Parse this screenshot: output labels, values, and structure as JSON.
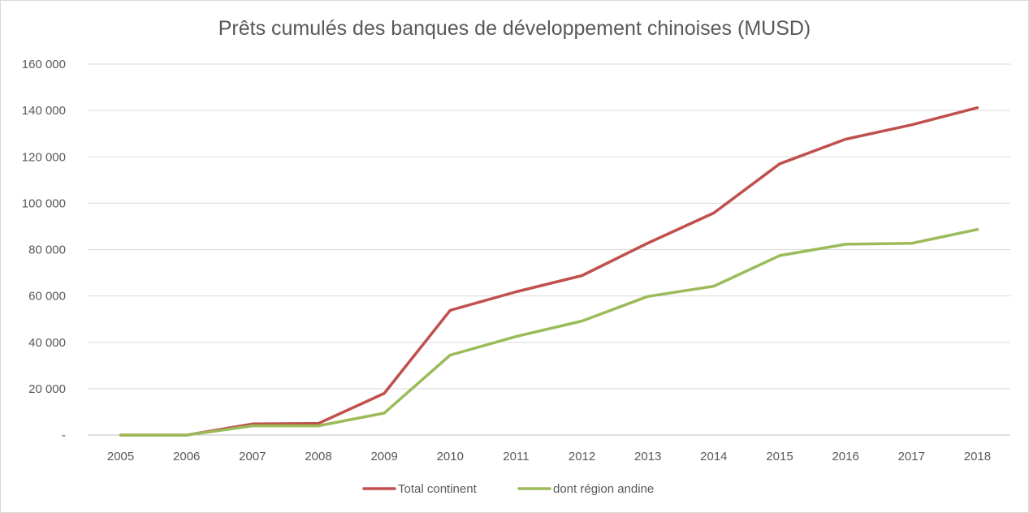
{
  "chart_data": {
    "type": "line",
    "title": "Prêts cumulés des banques de développement chinoises (MUSD)",
    "xlabel": "",
    "ylabel": "",
    "x": [
      "2005",
      "2006",
      "2007",
      "2008",
      "2009",
      "2010",
      "2011",
      "2012",
      "2013",
      "2014",
      "2015",
      "2016",
      "2017",
      "2018"
    ],
    "ylim": [
      0,
      160000
    ],
    "yticks": [
      0,
      20000,
      40000,
      60000,
      80000,
      100000,
      120000,
      140000,
      160000
    ],
    "ytick_labels": [
      "-",
      "20 000",
      "40 000",
      "60 000",
      "80 000",
      "100 000",
      "120 000",
      "140 000",
      "160 000"
    ],
    "grid": true,
    "legend_position": "bottom",
    "series": [
      {
        "name": "Total continent",
        "color": "#c0504d",
        "values": [
          0,
          0,
          4800,
          5000,
          18000,
          53800,
          61800,
          68800,
          82800,
          95800,
          117000,
          127600,
          133800,
          141200
        ]
      },
      {
        "name": "dont région andine",
        "color": "#9bbb59",
        "values": [
          0,
          0,
          4000,
          4000,
          9500,
          34500,
          42500,
          49200,
          59800,
          64200,
          77400,
          82300,
          82700,
          88700
        ]
      }
    ]
  }
}
